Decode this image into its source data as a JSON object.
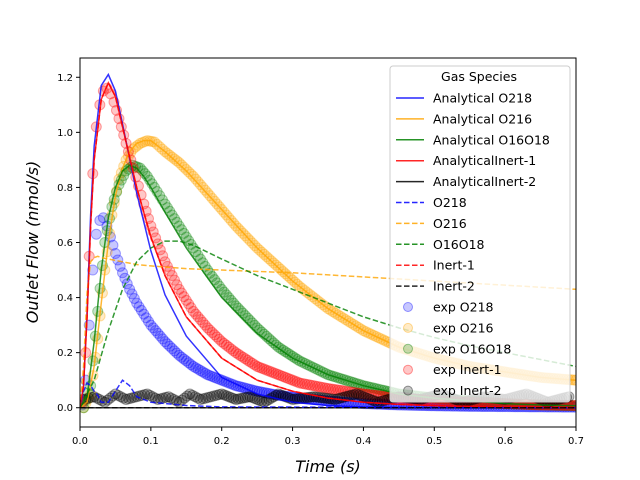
{
  "chart_data": {
    "type": "scatter",
    "xlabel": "Time (s)",
    "ylabel": "Outlet Flow (nmol/s)",
    "xlim": [
      0.0,
      0.7
    ],
    "ylim": [
      -0.07,
      1.27
    ],
    "xticks": [
      "0.0",
      "0.1",
      "0.2",
      "0.3",
      "0.4",
      "0.5",
      "0.6",
      "0.7"
    ],
    "yticks": [
      "0.0",
      "0.2",
      "0.4",
      "0.6",
      "0.8",
      "1.0",
      "1.2"
    ],
    "grid": false,
    "legend": {
      "title": "Gas Species",
      "placement": "top-right",
      "entries": [
        {
          "label": "Analytical O218",
          "color": "#0000ff",
          "style": "solid"
        },
        {
          "label": "Analytical O216",
          "color": "#ffa500",
          "style": "solid"
        },
        {
          "label": "Analytical O16O18",
          "color": "#008000",
          "style": "solid"
        },
        {
          "label": "AnalyticalInert-1",
          "color": "#ff0000",
          "style": "solid"
        },
        {
          "label": "AnalyticalInert-2",
          "color": "#000000",
          "style": "solid"
        },
        {
          "label": "O218",
          "color": "#0000ff",
          "style": "dashed"
        },
        {
          "label": "O216",
          "color": "#ffa500",
          "style": "dashed"
        },
        {
          "label": "O16O18",
          "color": "#008000",
          "style": "dashed"
        },
        {
          "label": "Inert-1",
          "color": "#ff0000",
          "style": "dashed"
        },
        {
          "label": "Inert-2",
          "color": "#000000",
          "style": "dashed"
        },
        {
          "label": "exp O218",
          "color": "#0000ff",
          "style": "marker"
        },
        {
          "label": "exp O216",
          "color": "#ffa500",
          "style": "marker"
        },
        {
          "label": "exp O16O18",
          "color": "#008000",
          "style": "marker"
        },
        {
          "label": "exp Inert-1",
          "color": "#ff0000",
          "style": "marker"
        },
        {
          "label": "exp Inert-2",
          "color": "#000000",
          "style": "marker"
        }
      ]
    },
    "series": [
      {
        "name": "Analytical O218",
        "kind": "line",
        "style": "solid",
        "color": "#0000ff",
        "x": [
          0.0,
          0.005,
          0.01,
          0.015,
          0.02,
          0.03,
          0.04,
          0.05,
          0.06,
          0.08,
          0.1,
          0.12,
          0.15,
          0.2,
          0.25,
          0.3,
          0.35,
          0.4,
          0.45,
          0.5,
          0.6,
          0.7
        ],
        "y": [
          0.0,
          0.08,
          0.35,
          0.7,
          0.95,
          1.17,
          1.21,
          1.15,
          1.03,
          0.78,
          0.57,
          0.41,
          0.26,
          0.11,
          0.05,
          0.02,
          0.008,
          0.003,
          0.001,
          0.0,
          0.0,
          0.0
        ]
      },
      {
        "name": "Analytical O216",
        "kind": "line",
        "style": "solid",
        "color": "#ffa500",
        "x": [
          0.0,
          0.01,
          0.02,
          0.03,
          0.04,
          0.05,
          0.06,
          0.07,
          0.08,
          0.09,
          0.1,
          0.12,
          0.15,
          0.2,
          0.25,
          0.3,
          0.35,
          0.4,
          0.45,
          0.5,
          0.55,
          0.6,
          0.65,
          0.7
        ],
        "y": [
          0.0,
          0.02,
          0.15,
          0.38,
          0.6,
          0.77,
          0.87,
          0.93,
          0.96,
          0.97,
          0.97,
          0.93,
          0.86,
          0.72,
          0.58,
          0.46,
          0.36,
          0.28,
          0.22,
          0.18,
          0.15,
          0.13,
          0.11,
          0.1
        ]
      },
      {
        "name": "Analytical O16O18",
        "kind": "line",
        "style": "solid",
        "color": "#008000",
        "x": [
          0.0,
          0.01,
          0.02,
          0.03,
          0.04,
          0.05,
          0.06,
          0.07,
          0.08,
          0.09,
          0.1,
          0.12,
          0.15,
          0.2,
          0.25,
          0.3,
          0.35,
          0.4,
          0.45,
          0.5,
          0.55,
          0.6,
          0.65,
          0.7
        ],
        "y": [
          0.0,
          0.04,
          0.24,
          0.5,
          0.69,
          0.8,
          0.86,
          0.88,
          0.87,
          0.84,
          0.8,
          0.71,
          0.58,
          0.4,
          0.27,
          0.18,
          0.12,
          0.08,
          0.05,
          0.035,
          0.025,
          0.015,
          0.01,
          0.007
        ]
      },
      {
        "name": "AnalyticalInert-1",
        "kind": "line",
        "style": "solid",
        "color": "#ff0000",
        "x": [
          0.0,
          0.005,
          0.01,
          0.015,
          0.02,
          0.03,
          0.04,
          0.05,
          0.06,
          0.08,
          0.1,
          0.12,
          0.15,
          0.2,
          0.25,
          0.3,
          0.35,
          0.4,
          0.45,
          0.5,
          0.6,
          0.7
        ],
        "y": [
          0.0,
          0.08,
          0.33,
          0.66,
          0.9,
          1.12,
          1.18,
          1.13,
          1.02,
          0.8,
          0.62,
          0.48,
          0.33,
          0.18,
          0.1,
          0.06,
          0.035,
          0.02,
          0.012,
          0.007,
          0.003,
          0.001
        ]
      },
      {
        "name": "AnalyticalInert-2",
        "kind": "line",
        "style": "solid",
        "color": "#000000",
        "x": [
          0.0,
          0.7
        ],
        "y": [
          0.0,
          0.0
        ]
      },
      {
        "name": "O218",
        "kind": "line",
        "style": "dashed",
        "color": "#0000ff",
        "x": [
          0.0,
          0.005,
          0.01,
          0.015,
          0.02,
          0.025,
          0.03,
          0.04,
          0.05,
          0.06,
          0.07,
          0.08,
          0.1,
          0.15,
          0.2,
          0.7
        ],
        "y": [
          0.0,
          0.06,
          0.09,
          0.08,
          0.06,
          0.045,
          0.02,
          0.02,
          0.06,
          0.1,
          0.08,
          0.04,
          0.02,
          0.008,
          0.003,
          0.0
        ]
      },
      {
        "name": "O216",
        "kind": "line",
        "style": "dashed",
        "color": "#ffa500",
        "x": [
          0.0,
          0.005,
          0.01,
          0.015,
          0.02,
          0.025,
          0.03,
          0.04,
          0.05,
          0.06,
          0.08,
          0.1,
          0.15,
          0.2,
          0.3,
          0.4,
          0.5,
          0.6,
          0.7
        ],
        "y": [
          0.0,
          0.15,
          0.42,
          0.53,
          0.545,
          0.55,
          0.545,
          0.54,
          0.535,
          0.53,
          0.52,
          0.515,
          0.505,
          0.5,
          0.49,
          0.475,
          0.46,
          0.445,
          0.43
        ]
      },
      {
        "name": "O16O18",
        "kind": "line",
        "style": "dashed",
        "color": "#008000",
        "x": [
          0.0,
          0.02,
          0.04,
          0.06,
          0.08,
          0.1,
          0.12,
          0.14,
          0.16,
          0.18,
          0.2,
          0.25,
          0.3,
          0.35,
          0.4,
          0.45,
          0.5,
          0.55,
          0.6,
          0.65,
          0.7
        ],
        "y": [
          0.0,
          0.1,
          0.28,
          0.43,
          0.53,
          0.58,
          0.605,
          0.605,
          0.59,
          0.565,
          0.54,
          0.48,
          0.43,
          0.38,
          0.33,
          0.29,
          0.255,
          0.225,
          0.2,
          0.175,
          0.15
        ]
      },
      {
        "name": "Inert-1",
        "kind": "line",
        "style": "dashed",
        "color": "#ff0000",
        "x": [
          0.0,
          0.005,
          0.01,
          0.015,
          0.02,
          0.03,
          0.04,
          0.05,
          0.06,
          0.08,
          0.1,
          0.12,
          0.15,
          0.2,
          0.25,
          0.3,
          0.35,
          0.4,
          0.45,
          0.5,
          0.6,
          0.7
        ],
        "y": [
          0.0,
          0.08,
          0.33,
          0.66,
          0.9,
          1.12,
          1.18,
          1.13,
          1.02,
          0.8,
          0.62,
          0.48,
          0.33,
          0.18,
          0.1,
          0.06,
          0.035,
          0.02,
          0.012,
          0.007,
          0.003,
          0.001
        ]
      },
      {
        "name": "Inert-2",
        "kind": "line",
        "style": "dashed",
        "color": "#000000",
        "x": [
          0.0,
          0.7
        ],
        "y": [
          0.0,
          0.0
        ]
      },
      {
        "name": "exp O218",
        "kind": "scatter",
        "color": "#0000ff",
        "x": [
          0.003,
          0.008,
          0.013,
          0.018,
          0.023,
          0.028,
          0.033,
          0.038,
          0.043,
          0.05,
          0.06,
          0.07,
          0.08,
          0.1,
          0.12,
          0.14,
          0.16,
          0.18,
          0.2,
          0.22,
          0.25,
          0.28,
          0.31,
          0.35,
          0.4,
          0.45,
          0.5,
          0.55,
          0.6,
          0.65,
          0.7
        ],
        "y": [
          0.01,
          0.1,
          0.3,
          0.5,
          0.63,
          0.68,
          0.69,
          0.66,
          0.62,
          0.56,
          0.49,
          0.43,
          0.38,
          0.3,
          0.24,
          0.19,
          0.15,
          0.12,
          0.1,
          0.08,
          0.06,
          0.045,
          0.035,
          0.025,
          0.015,
          0.01,
          0.007,
          0.005,
          0.004,
          0.003,
          0.002
        ]
      },
      {
        "name": "exp O216",
        "kind": "scatter",
        "color": "#ffa500",
        "x": [
          0.005,
          0.015,
          0.025,
          0.035,
          0.045,
          0.055,
          0.065,
          0.075,
          0.085,
          0.095,
          0.105,
          0.12,
          0.14,
          0.16,
          0.18,
          0.2,
          0.22,
          0.25,
          0.28,
          0.31,
          0.35,
          0.4,
          0.45,
          0.5,
          0.55,
          0.6,
          0.65,
          0.7
        ],
        "y": [
          0.0,
          0.05,
          0.25,
          0.5,
          0.7,
          0.83,
          0.9,
          0.94,
          0.96,
          0.97,
          0.965,
          0.93,
          0.89,
          0.84,
          0.78,
          0.72,
          0.66,
          0.58,
          0.51,
          0.44,
          0.36,
          0.28,
          0.22,
          0.18,
          0.15,
          0.13,
          0.11,
          0.1
        ]
      },
      {
        "name": "exp O16O18",
        "kind": "scatter",
        "color": "#008000",
        "x": [
          0.005,
          0.015,
          0.025,
          0.035,
          0.045,
          0.055,
          0.065,
          0.075,
          0.085,
          0.095,
          0.105,
          0.12,
          0.14,
          0.16,
          0.18,
          0.2,
          0.22,
          0.25,
          0.28,
          0.31,
          0.35,
          0.4,
          0.45,
          0.5,
          0.55,
          0.6,
          0.65,
          0.7
        ],
        "y": [
          0.0,
          0.08,
          0.35,
          0.6,
          0.73,
          0.81,
          0.86,
          0.88,
          0.87,
          0.84,
          0.8,
          0.74,
          0.66,
          0.58,
          0.5,
          0.43,
          0.37,
          0.29,
          0.22,
          0.17,
          0.12,
          0.08,
          0.05,
          0.035,
          0.025,
          0.015,
          0.01,
          0.007
        ]
      },
      {
        "name": "exp Inert-1",
        "kind": "scatter",
        "color": "#ff0000",
        "x": [
          0.003,
          0.008,
          0.013,
          0.018,
          0.023,
          0.028,
          0.033,
          0.038,
          0.043,
          0.048,
          0.055,
          0.065,
          0.075,
          0.09,
          0.1,
          0.12,
          0.14,
          0.16,
          0.18,
          0.2,
          0.22,
          0.25,
          0.28,
          0.31,
          0.35,
          0.4,
          0.45,
          0.5,
          0.55,
          0.6,
          0.65,
          0.7
        ],
        "y": [
          0.02,
          0.2,
          0.55,
          0.85,
          1.02,
          1.1,
          1.15,
          1.16,
          1.14,
          1.11,
          1.05,
          0.96,
          0.87,
          0.74,
          0.66,
          0.53,
          0.43,
          0.35,
          0.29,
          0.24,
          0.2,
          0.15,
          0.12,
          0.09,
          0.07,
          0.05,
          0.035,
          0.025,
          0.02,
          0.015,
          0.01,
          0.008
        ]
      },
      {
        "name": "exp Inert-2",
        "kind": "scatter",
        "color": "#000000",
        "x": [
          0.005,
          0.02,
          0.035,
          0.05,
          0.065,
          0.08,
          0.095,
          0.11,
          0.125,
          0.14,
          0.155,
          0.17,
          0.185,
          0.2,
          0.22,
          0.24,
          0.26,
          0.28,
          0.3,
          0.33,
          0.36,
          0.39,
          0.42,
          0.45,
          0.48,
          0.51,
          0.54,
          0.57,
          0.6,
          0.63,
          0.66,
          0.69
        ],
        "y": [
          0.03,
          0.04,
          0.02,
          0.05,
          0.03,
          0.04,
          0.05,
          0.03,
          0.04,
          0.02,
          0.05,
          0.03,
          0.04,
          0.05,
          0.03,
          0.04,
          0.02,
          0.05,
          0.03,
          0.04,
          0.03,
          0.05,
          0.02,
          0.04,
          0.03,
          0.05,
          0.02,
          0.04,
          0.03,
          0.05,
          0.02,
          0.04
        ]
      }
    ]
  }
}
